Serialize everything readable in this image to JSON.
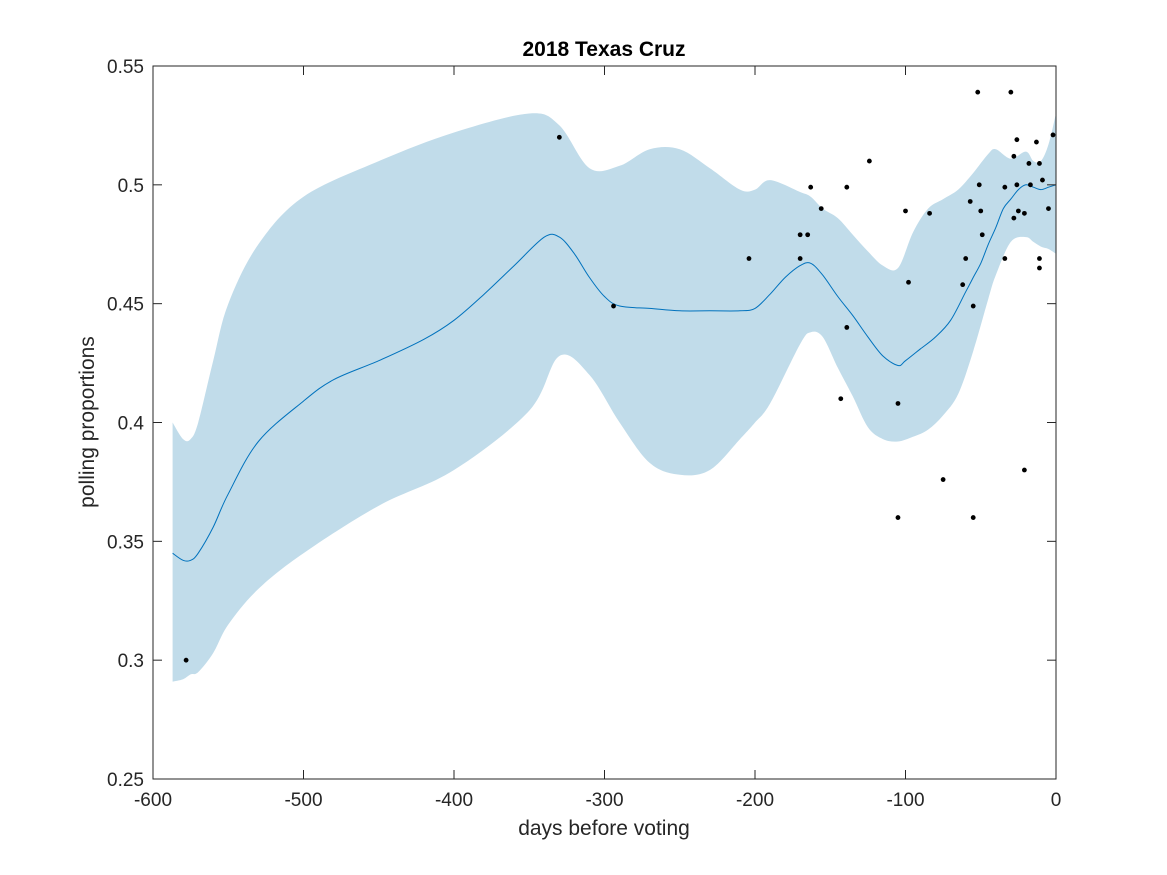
{
  "chart_data": {
    "type": "scatter",
    "title": "2018 Texas Cruz",
    "xlabel": "days before voting",
    "ylabel": "polling proportions",
    "xlim": [
      -600,
      0
    ],
    "ylim": [
      0.25,
      0.55
    ],
    "xticks": [
      -600,
      -500,
      -400,
      -300,
      -200,
      -100,
      0
    ],
    "yticks": [
      0.25,
      0.3,
      0.35,
      0.4,
      0.45,
      0.5,
      0.55
    ],
    "xtick_labels": [
      "-600",
      "-500",
      "-400",
      "-300",
      "-200",
      "-100",
      "0"
    ],
    "ytick_labels": [
      "0.25",
      "0.3",
      "0.35",
      "0.4",
      "0.45",
      "0.5",
      "0.55"
    ],
    "grid": false,
    "colors": {
      "band": "#c1dcea",
      "line": "#0072bd",
      "points": "#000000",
      "axes": "#262626"
    },
    "band": {
      "x": [
        -587,
        -580,
        -575,
        -570,
        -560,
        -550,
        -530,
        -500,
        -450,
        -400,
        -350,
        -330,
        -310,
        -290,
        -270,
        -250,
        -230,
        -210,
        -200,
        -190,
        -170,
        -163,
        -155,
        -145,
        -135,
        -125,
        -115,
        -105,
        -95,
        -85,
        -75,
        -65,
        -55,
        -45,
        -40,
        -30,
        -20,
        -15,
        -10,
        -5,
        0
      ],
      "upper": [
        0.4,
        0.393,
        0.393,
        0.4,
        0.426,
        0.45,
        0.475,
        0.495,
        0.51,
        0.522,
        0.53,
        0.525,
        0.507,
        0.508,
        0.515,
        0.515,
        0.507,
        0.498,
        0.498,
        0.502,
        0.497,
        0.495,
        0.49,
        0.486,
        0.479,
        0.472,
        0.466,
        0.465,
        0.48,
        0.49,
        0.494,
        0.498,
        0.505,
        0.513,
        0.515,
        0.511,
        0.514,
        0.51,
        0.51,
        0.517,
        0.53
      ],
      "lower": [
        0.291,
        0.292,
        0.294,
        0.295,
        0.303,
        0.315,
        0.33,
        0.345,
        0.365,
        0.38,
        0.405,
        0.428,
        0.42,
        0.4,
        0.383,
        0.378,
        0.38,
        0.393,
        0.4,
        0.408,
        0.433,
        0.438,
        0.436,
        0.423,
        0.411,
        0.398,
        0.393,
        0.392,
        0.394,
        0.397,
        0.403,
        0.412,
        0.43,
        0.452,
        0.462,
        0.476,
        0.478,
        0.476,
        0.474,
        0.473,
        0.471
      ]
    },
    "series": [
      {
        "x": [
          -587,
          -580,
          -575,
          -570,
          -560,
          -550,
          -530,
          -500,
          -480,
          -450,
          -420,
          -400,
          -380,
          -360,
          -340,
          -330,
          -320,
          -310,
          -300,
          -290,
          -270,
          -250,
          -230,
          -210,
          -200,
          -190,
          -180,
          -170,
          -163,
          -155,
          -145,
          -135,
          -125,
          -115,
          -105,
          -100,
          -90,
          -80,
          -70,
          -60,
          -55,
          -50,
          -45,
          -40,
          -35,
          -30,
          -25,
          -20,
          -15,
          -10,
          -5,
          0
        ],
        "y": [
          0.345,
          0.342,
          0.342,
          0.345,
          0.356,
          0.37,
          0.392,
          0.409,
          0.418,
          0.426,
          0.435,
          0.443,
          0.454,
          0.466,
          0.478,
          0.478,
          0.471,
          0.461,
          0.453,
          0.449,
          0.448,
          0.447,
          0.447,
          0.447,
          0.448,
          0.454,
          0.461,
          0.466,
          0.467,
          0.462,
          0.453,
          0.445,
          0.436,
          0.428,
          0.424,
          0.426,
          0.431,
          0.436,
          0.443,
          0.455,
          0.461,
          0.467,
          0.475,
          0.482,
          0.49,
          0.494,
          0.498,
          0.5,
          0.499,
          0.498,
          0.499,
          0.5
        ]
      }
    ],
    "points": [
      {
        "x": -578,
        "y": 0.3
      },
      {
        "x": -330,
        "y": 0.52
      },
      {
        "x": -294,
        "y": 0.449
      },
      {
        "x": -204,
        "y": 0.469
      },
      {
        "x": -170,
        "y": 0.479
      },
      {
        "x": -170,
        "y": 0.469
      },
      {
        "x": -165,
        "y": 0.479
      },
      {
        "x": -163,
        "y": 0.499
      },
      {
        "x": -156,
        "y": 0.49
      },
      {
        "x": -143,
        "y": 0.41
      },
      {
        "x": -139,
        "y": 0.499
      },
      {
        "x": -139,
        "y": 0.44
      },
      {
        "x": -124,
        "y": 0.51
      },
      {
        "x": -105,
        "y": 0.408
      },
      {
        "x": -105,
        "y": 0.36
      },
      {
        "x": -100,
        "y": 0.489
      },
      {
        "x": -98,
        "y": 0.459
      },
      {
        "x": -84,
        "y": 0.488
      },
      {
        "x": -75,
        "y": 0.376
      },
      {
        "x": -62,
        "y": 0.458
      },
      {
        "x": -60,
        "y": 0.469
      },
      {
        "x": -57,
        "y": 0.493
      },
      {
        "x": -55,
        "y": 0.449
      },
      {
        "x": -55,
        "y": 0.36
      },
      {
        "x": -52,
        "y": 0.539
      },
      {
        "x": -51,
        "y": 0.5
      },
      {
        "x": -50,
        "y": 0.489
      },
      {
        "x": -49,
        "y": 0.479
      },
      {
        "x": -34,
        "y": 0.499
      },
      {
        "x": -34,
        "y": 0.469
      },
      {
        "x": -30,
        "y": 0.539
      },
      {
        "x": -28,
        "y": 0.512
      },
      {
        "x": -28,
        "y": 0.486
      },
      {
        "x": -26,
        "y": 0.519
      },
      {
        "x": -26,
        "y": 0.5
      },
      {
        "x": -25,
        "y": 0.489
      },
      {
        "x": -21,
        "y": 0.488
      },
      {
        "x": -21,
        "y": 0.38
      },
      {
        "x": -18,
        "y": 0.509
      },
      {
        "x": -17,
        "y": 0.5
      },
      {
        "x": -13,
        "y": 0.518
      },
      {
        "x": -11,
        "y": 0.509
      },
      {
        "x": -11,
        "y": 0.469
      },
      {
        "x": -11,
        "y": 0.465
      },
      {
        "x": -9,
        "y": 0.502
      },
      {
        "x": -5,
        "y": 0.49
      },
      {
        "x": -2,
        "y": 0.521
      }
    ]
  }
}
